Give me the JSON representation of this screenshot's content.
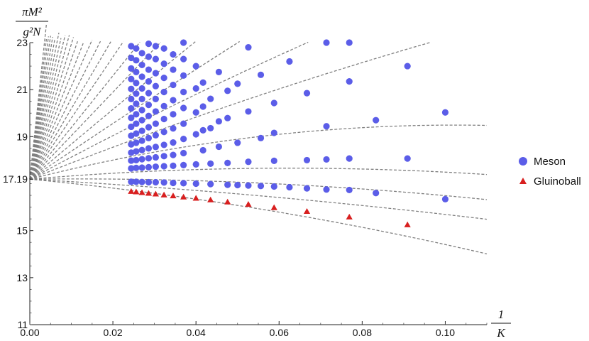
{
  "chart_data": {
    "type": "scatter",
    "x_ticks": [
      "0.00",
      "0.02",
      "0.04",
      "0.06",
      "0.08",
      "0.10"
    ],
    "y_ticks": [
      "11",
      "13",
      "15",
      "17.19",
      "19",
      "21",
      "23"
    ],
    "xlim": [
      0,
      0.11
    ],
    "ylim": [
      11,
      23
    ],
    "y_intercept": 17.19,
    "xlabel": {
      "numerator": "1",
      "denominator": "K"
    },
    "ylabel": {
      "numerator": "πM²",
      "denominator": "g²N"
    },
    "legend_position": "right",
    "series": [
      {
        "name": "Meson",
        "marker": "circle",
        "color": "#5b5de8",
        "points": [
          [
            0.1,
            16.34
          ],
          [
            0.0909,
            18.07
          ],
          [
            0.0909,
            22.0
          ],
          [
            0.1,
            20.03
          ],
          [
            0.0833,
            16.6
          ],
          [
            0.0833,
            19.7
          ],
          [
            0.0769,
            16.73
          ],
          [
            0.0769,
            18.07
          ],
          [
            0.0769,
            21.35
          ],
          [
            0.0769,
            23.0
          ],
          [
            0.0714,
            16.75
          ],
          [
            0.0714,
            18.03
          ],
          [
            0.0714,
            19.44
          ],
          [
            0.0714,
            23.0
          ],
          [
            0.0667,
            16.8
          ],
          [
            0.0667,
            18.0
          ],
          [
            0.0667,
            20.85
          ],
          [
            0.0625,
            16.85
          ],
          [
            0.0625,
            22.2
          ],
          [
            0.0588,
            16.88
          ],
          [
            0.0588,
            17.97
          ],
          [
            0.0588,
            19.16
          ],
          [
            0.0588,
            20.43
          ],
          [
            0.0556,
            16.9
          ],
          [
            0.0556,
            18.94
          ],
          [
            0.0556,
            21.63
          ],
          [
            0.0526,
            16.92
          ],
          [
            0.0526,
            17.93
          ],
          [
            0.0526,
            20.07
          ],
          [
            0.0526,
            22.8
          ],
          [
            0.05,
            16.94
          ],
          [
            0.05,
            18.74
          ],
          [
            0.05,
            21.25
          ],
          [
            0.0476,
            16.95
          ],
          [
            0.0476,
            17.88
          ],
          [
            0.0476,
            19.79
          ],
          [
            0.0476,
            20.95
          ],
          [
            0.0455,
            18.57
          ],
          [
            0.0455,
            19.65
          ],
          [
            0.0455,
            21.75
          ],
          [
            0.0435,
            16.98
          ],
          [
            0.0435,
            17.85
          ],
          [
            0.0435,
            19.36
          ],
          [
            0.0435,
            20.61
          ],
          [
            0.0417,
            18.42
          ],
          [
            0.0417,
            19.27
          ],
          [
            0.0417,
            20.28
          ],
          [
            0.0417,
            21.3
          ],
          [
            0.04,
            17.0
          ],
          [
            0.04,
            17.82
          ],
          [
            0.04,
            19.1
          ],
          [
            0.04,
            20.03
          ],
          [
            0.04,
            21.05
          ],
          [
            0.04,
            22.0
          ],
          [
            0.037,
            17.02
          ],
          [
            0.037,
            17.79
          ],
          [
            0.037,
            18.3
          ],
          [
            0.037,
            18.9
          ],
          [
            0.037,
            19.55
          ],
          [
            0.037,
            20.22
          ],
          [
            0.037,
            20.9
          ],
          [
            0.037,
            21.6
          ],
          [
            0.037,
            22.3
          ],
          [
            0.037,
            23.0
          ],
          [
            0.0345,
            17.03
          ],
          [
            0.0345,
            17.76
          ],
          [
            0.0345,
            18.22
          ],
          [
            0.0345,
            18.75
          ],
          [
            0.0345,
            19.35
          ],
          [
            0.0345,
            19.95
          ],
          [
            0.0345,
            20.55
          ],
          [
            0.0345,
            21.2
          ],
          [
            0.0345,
            21.85
          ],
          [
            0.0345,
            22.5
          ],
          [
            0.0323,
            17.05
          ],
          [
            0.0323,
            17.74
          ],
          [
            0.0323,
            18.17
          ],
          [
            0.0323,
            18.65
          ],
          [
            0.0323,
            19.2
          ],
          [
            0.0323,
            19.75
          ],
          [
            0.0323,
            20.3
          ],
          [
            0.0323,
            20.9
          ],
          [
            0.0323,
            21.5
          ],
          [
            0.0323,
            22.1
          ],
          [
            0.0323,
            22.75
          ],
          [
            0.0303,
            17.06
          ],
          [
            0.0303,
            17.72
          ],
          [
            0.0303,
            18.12
          ],
          [
            0.0303,
            18.56
          ],
          [
            0.0303,
            19.06
          ],
          [
            0.0303,
            19.55
          ],
          [
            0.0303,
            20.07
          ],
          [
            0.0303,
            20.6
          ],
          [
            0.0303,
            21.15
          ],
          [
            0.0303,
            21.7
          ],
          [
            0.0303,
            22.3
          ],
          [
            0.0303,
            22.85
          ],
          [
            0.0286,
            17.06
          ],
          [
            0.0286,
            17.7
          ],
          [
            0.0286,
            18.08
          ],
          [
            0.0286,
            18.5
          ],
          [
            0.0286,
            18.94
          ],
          [
            0.0286,
            19.4
          ],
          [
            0.0286,
            19.88
          ],
          [
            0.0286,
            20.35
          ],
          [
            0.0286,
            20.85
          ],
          [
            0.0286,
            21.35
          ],
          [
            0.0286,
            21.85
          ],
          [
            0.0286,
            22.4
          ],
          [
            0.0286,
            22.95
          ],
          [
            0.027,
            17.07
          ],
          [
            0.027,
            17.68
          ],
          [
            0.027,
            18.04
          ],
          [
            0.027,
            18.43
          ],
          [
            0.027,
            18.83
          ],
          [
            0.027,
            19.25
          ],
          [
            0.027,
            19.7
          ],
          [
            0.027,
            20.13
          ],
          [
            0.027,
            20.6
          ],
          [
            0.027,
            21.05
          ],
          [
            0.027,
            21.55
          ],
          [
            0.027,
            22.05
          ],
          [
            0.027,
            22.55
          ],
          [
            0.0256,
            17.08
          ],
          [
            0.0256,
            17.67
          ],
          [
            0.0256,
            18.0
          ],
          [
            0.0256,
            18.37
          ],
          [
            0.0256,
            18.74
          ],
          [
            0.0256,
            19.13
          ],
          [
            0.0256,
            19.55
          ],
          [
            0.0256,
            19.95
          ],
          [
            0.0256,
            20.4
          ],
          [
            0.0256,
            20.83
          ],
          [
            0.0256,
            21.28
          ],
          [
            0.0256,
            21.75
          ],
          [
            0.0256,
            22.25
          ],
          [
            0.0256,
            22.75
          ],
          [
            0.0244,
            17.08
          ],
          [
            0.0244,
            17.65
          ],
          [
            0.0244,
            17.98
          ],
          [
            0.0244,
            18.32
          ],
          [
            0.0244,
            18.67
          ],
          [
            0.0244,
            19.04
          ],
          [
            0.0244,
            19.42
          ],
          [
            0.0244,
            19.8
          ],
          [
            0.0244,
            20.2
          ],
          [
            0.0244,
            20.6
          ],
          [
            0.0244,
            21.03
          ],
          [
            0.0244,
            21.45
          ],
          [
            0.0244,
            21.9
          ],
          [
            0.0244,
            22.35
          ],
          [
            0.0244,
            22.85
          ]
        ]
      },
      {
        "name": "Gluinoball",
        "marker": "triangle",
        "color": "#d81f1f",
        "points": [
          [
            0.0909,
            15.25
          ],
          [
            0.0769,
            15.58
          ],
          [
            0.0667,
            15.82
          ],
          [
            0.0588,
            15.98
          ],
          [
            0.0526,
            16.12
          ],
          [
            0.0476,
            16.22
          ],
          [
            0.0435,
            16.31
          ],
          [
            0.04,
            16.38
          ],
          [
            0.037,
            16.43
          ],
          [
            0.0345,
            16.48
          ],
          [
            0.0323,
            16.52
          ],
          [
            0.0303,
            16.56
          ],
          [
            0.0286,
            16.59
          ],
          [
            0.027,
            16.62
          ],
          [
            0.0256,
            16.65
          ],
          [
            0.0244,
            16.67
          ]
        ]
      }
    ],
    "fit_curves": {
      "style": "dashed",
      "color": "#808080",
      "from": [
        0,
        17.19
      ],
      "coefficients": [
        [
          -16.8,
          -110
        ],
        [
          -10,
          -50
        ],
        [
          2,
          -90
        ],
        [
          15,
          -120
        ],
        [
          45,
          -220
        ],
        [
          70,
          -100
        ],
        [
          95,
          -120
        ],
        [
          120,
          -80
        ],
        [
          150,
          -80
        ],
        [
          185,
          0
        ],
        [
          220,
          0
        ],
        [
          260,
          0
        ],
        [
          300,
          0
        ],
        [
          345,
          0
        ],
        [
          395,
          0
        ],
        [
          450,
          0
        ],
        [
          510,
          0
        ],
        [
          575,
          0
        ],
        [
          645,
          0
        ],
        [
          720,
          0
        ],
        [
          800,
          0
        ],
        [
          890,
          0
        ],
        [
          990,
          0
        ],
        [
          1100,
          0
        ],
        [
          1220,
          0
        ],
        [
          1350,
          0
        ],
        [
          1490,
          0
        ],
        [
          1650,
          0
        ]
      ]
    }
  }
}
